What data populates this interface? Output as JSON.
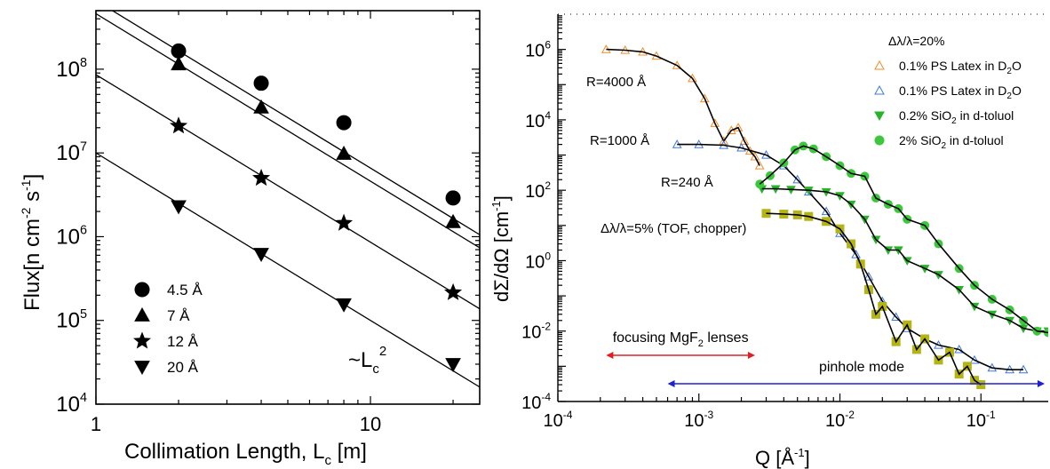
{
  "chart_data": [
    {
      "type": "scatter",
      "xlabel": "Collimation Length, L",
      "xlabel_sub": "c",
      "xlabel_unit": " [m]",
      "ylabel": "Flux[n cm",
      "ylabel_sup1": "-2",
      "ylabel_mid": " s",
      "ylabel_sup2": "-1",
      "ylabel_end": "]",
      "xscale": "log",
      "yscale": "log",
      "xlim": [
        1,
        25
      ],
      "ylim": [
        10000,
        500000000
      ],
      "xticks": [
        {
          "v": 1,
          "label": "1"
        },
        {
          "v": 10,
          "label": "10"
        }
      ],
      "yticks": [
        {
          "v": 10000,
          "base": "10",
          "exp": "4"
        },
        {
          "v": 100000,
          "base": "10",
          "exp": "5"
        },
        {
          "v": 1000000,
          "base": "10",
          "exp": "6"
        },
        {
          "v": 10000000,
          "base": "10",
          "exp": "7"
        },
        {
          "v": 100000000,
          "base": "10",
          "exp": "8"
        }
      ],
      "series": [
        {
          "name": "4.5 Å",
          "marker": "circle",
          "x": [
            2,
            4,
            8,
            20
          ],
          "y": [
            165000000,
            68000000,
            23000000,
            2900000
          ]
        },
        {
          "name": "7 Å",
          "marker": "triangle-up",
          "x": [
            2,
            4,
            8,
            20
          ],
          "y": [
            115000000,
            35000000,
            9800000,
            1500000
          ]
        },
        {
          "name": "12 Å",
          "marker": "star",
          "x": [
            2,
            4,
            8,
            20
          ],
          "y": [
            21000000,
            5000000,
            1450000,
            215000
          ]
        },
        {
          "name": "20 Å",
          "marker": "triangle-down",
          "x": [
            2,
            4,
            8,
            20
          ],
          "y": [
            2300000,
            620000,
            155000,
            30000
          ]
        }
      ],
      "fit_lines": [
        {
          "slope": -2,
          "x": [
            1,
            25
          ],
          "y": [
            660000000,
            1056000
          ]
        },
        {
          "slope": -2,
          "x": [
            1,
            25
          ],
          "y": [
            460000000,
            736000
          ]
        },
        {
          "slope": -2,
          "x": [
            1,
            25
          ],
          "y": [
            86000000,
            137600
          ]
        },
        {
          "slope": -2,
          "x": [
            1,
            25
          ],
          "y": [
            10000000,
            16000
          ]
        }
      ],
      "legend_position": "bottom-left",
      "annotation": {
        "text": "~L",
        "sub": "c",
        "sup": "2"
      }
    },
    {
      "type": "scatter",
      "xlabel": "Q [Å",
      "xlabel_sup": "-1",
      "xlabel_end": "]",
      "ylabel": "dΣ/dΩ [cm",
      "ylabel_sup": "-1",
      "ylabel_end": "]",
      "xscale": "log",
      "yscale": "log",
      "xlim": [
        0.0001,
        0.3
      ],
      "ylim": [
        0.0001,
        10000000
      ],
      "xticks": [
        {
          "v": 0.0001,
          "base": "10",
          "exp": "-4"
        },
        {
          "v": 0.001,
          "base": "10",
          "exp": "-3"
        },
        {
          "v": 0.01,
          "base": "10",
          "exp": "-2"
        },
        {
          "v": 0.1,
          "base": "10",
          "exp": "-1"
        }
      ],
      "yticks": [
        {
          "v": 0.0001,
          "base": "10",
          "exp": "-4"
        },
        {
          "v": 0.01,
          "base": "10",
          "exp": "-2"
        },
        {
          "v": 1,
          "base": "10",
          "exp": "0"
        },
        {
          "v": 100,
          "base": "10",
          "exp": "2"
        },
        {
          "v": 10000,
          "base": "10",
          "exp": "4"
        },
        {
          "v": 1000000,
          "base": "10",
          "exp": "6"
        }
      ],
      "legend_title": "Δλ/λ=20%",
      "series": [
        {
          "name": "0.1% PS Latex in D",
          "name_sub": "2",
          "name_end": "O",
          "marker": "triangle-up-open",
          "color": "#f08c28",
          "x": [
            0.00022,
            0.0003,
            0.0004,
            0.0005,
            0.0007,
            0.0009,
            0.0011,
            0.0013,
            0.0015,
            0.0017,
            0.0019,
            0.0021,
            0.0023,
            0.0025,
            0.0027
          ],
          "y": [
            1000000,
            950000,
            850000,
            650000,
            350000,
            150000,
            40000,
            8000,
            2500,
            5000,
            6000,
            2500,
            1300,
            900,
            500
          ]
        },
        {
          "name": "0.1% PS Latex in D",
          "name_sub": "2",
          "name_end": "O",
          "marker": "triangle-up-open",
          "color": "#3c78dc",
          "x": [
            0.0007,
            0.001,
            0.0015,
            0.002,
            0.003,
            0.004,
            0.005,
            0.006,
            0.008,
            0.01,
            0.013,
            0.016,
            0.02,
            0.025,
            0.03,
            0.04,
            0.05,
            0.07,
            0.09,
            0.12,
            0.16,
            0.2
          ],
          "y": [
            2000,
            2000,
            1900,
            1600,
            1000,
            500,
            200,
            90,
            25,
            6,
            1.5,
            0.35,
            0.07,
            0.025,
            0.012,
            0.006,
            0.004,
            0.003,
            0.0015,
            0.0009,
            0.0008,
            0.0008
          ]
        },
        {
          "name": "0.2% SiO",
          "name_sub": "2",
          "name_end": " in d-toluol",
          "marker": "triangle-down",
          "color": "#28b428",
          "x": [
            0.0028,
            0.0035,
            0.0045,
            0.006,
            0.008,
            0.01,
            0.012,
            0.015,
            0.018,
            0.022,
            0.026,
            0.03,
            0.04,
            0.05,
            0.07,
            0.09,
            0.12,
            0.16,
            0.2,
            0.25,
            0.3
          ],
          "y": [
            110,
            110,
            105,
            100,
            90,
            70,
            40,
            15,
            4,
            2,
            2,
            1,
            0.6,
            0.4,
            0.15,
            0.05,
            0.03,
            0.02,
            0.012,
            0.01,
            0.01
          ]
        },
        {
          "name": "2% SiO",
          "name_sub": "2",
          "name_end": " in d-toluol",
          "marker": "circle",
          "color": "#3cc83c",
          "x": [
            0.0027,
            0.0032,
            0.004,
            0.0048,
            0.0055,
            0.0065,
            0.008,
            0.01,
            0.012,
            0.015,
            0.018,
            0.022,
            0.026,
            0.03,
            0.04,
            0.05,
            0.07,
            0.09,
            0.12,
            0.16,
            0.2,
            0.25,
            0.3
          ],
          "y": [
            150,
            260,
            600,
            1400,
            1800,
            1500,
            900,
            500,
            300,
            250,
            60,
            40,
            30,
            15,
            10,
            3,
            0.6,
            0.2,
            0.08,
            0.04,
            0.02,
            0.01,
            0.009
          ]
        },
        {
          "name": "Δλ/λ=5% (TOF, chopper)",
          "marker": "square",
          "color": "#b4b414",
          "x": [
            0.003,
            0.004,
            0.005,
            0.006,
            0.008,
            0.01,
            0.012,
            0.014,
            0.016,
            0.018,
            0.02,
            0.025,
            0.03,
            0.035,
            0.04,
            0.05,
            0.06,
            0.07,
            0.08,
            0.09,
            0.1
          ],
          "y": [
            22,
            21,
            20,
            18,
            13,
            8,
            3,
            0.8,
            0.15,
            0.03,
            0.05,
            0.005,
            0.015,
            0.003,
            0.006,
            0.0015,
            0.0025,
            0.0006,
            0.001,
            0.0004,
            0.0003
          ]
        }
      ],
      "annotations": [
        {
          "text": "R=4000 Å",
          "color": "#e02020"
        },
        {
          "text": "R=1000 Å",
          "color": "#2020e0"
        },
        {
          "text": "R=240 Å",
          "color": "#209020"
        },
        {
          "text": "Δλ/λ=5% (TOF, chopper)",
          "color": "#9a9a10"
        },
        {
          "text": "focusing MgF",
          "sub": "2",
          "end": " lenses",
          "color": "#e02020",
          "x_range": [
            0.00022,
            0.0025
          ]
        },
        {
          "text": "pinhole mode",
          "color": "#2020d0",
          "x_range": [
            0.0006,
            0.3
          ]
        }
      ]
    }
  ]
}
